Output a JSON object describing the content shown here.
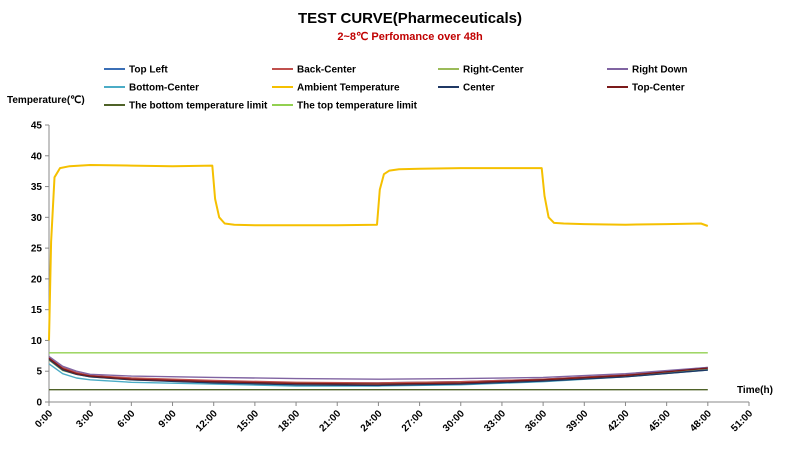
{
  "chart_data": {
    "type": "line",
    "title": "TEST CURVE(Pharmeceuticals)",
    "subtitle": "2~8℃ Perfomance over 48h",
    "ylabel": "Temperature(℃)",
    "xlabel": "Time(h)",
    "ylim": [
      0,
      45
    ],
    "xlim": [
      0,
      51
    ],
    "y_ticks": [
      "0",
      "5",
      "10",
      "15",
      "20",
      "25",
      "30",
      "35",
      "40",
      "45"
    ],
    "x_ticks": [
      "0:00",
      "3:00",
      "6:00",
      "9:00",
      "12:00",
      "15:00",
      "18:00",
      "21:00",
      "24:00",
      "27:00",
      "30:00",
      "33:00",
      "36:00",
      "39:00",
      "42:00",
      "45:00",
      "48:00",
      "51:00"
    ],
    "grid": false,
    "legend_position": "top",
    "series": [
      {
        "name": "Top Left",
        "color": "#3b6fb6",
        "x": [
          0,
          1,
          2,
          3,
          6,
          12,
          18,
          24,
          30,
          36,
          42,
          48
        ],
        "y": [
          7.0,
          5.3,
          4.6,
          4.2,
          3.8,
          3.4,
          3.1,
          3.1,
          3.3,
          3.7,
          4.4,
          5.6
        ]
      },
      {
        "name": "Back-Center",
        "color": "#c0504d",
        "x": [
          0,
          1,
          2,
          3,
          6,
          12,
          18,
          24,
          30,
          36,
          42,
          48
        ],
        "y": [
          7.3,
          5.6,
          4.8,
          4.3,
          3.9,
          3.5,
          3.2,
          3.1,
          3.3,
          3.7,
          4.4,
          5.4
        ]
      },
      {
        "name": "Right-Center",
        "color": "#9bbb59",
        "x": [
          0,
          1,
          2,
          3,
          6,
          12,
          18,
          24,
          30,
          36,
          42,
          48
        ],
        "y": [
          6.8,
          5.1,
          4.5,
          4.1,
          3.6,
          3.2,
          3.0,
          2.9,
          3.1,
          3.5,
          4.2,
          5.3
        ]
      },
      {
        "name": "Right Down",
        "color": "#8064a2",
        "x": [
          0,
          1,
          2,
          3,
          6,
          12,
          18,
          24,
          30,
          36,
          42,
          48
        ],
        "y": [
          7.4,
          5.8,
          5.0,
          4.5,
          4.2,
          4.0,
          3.8,
          3.7,
          3.8,
          4.0,
          4.6,
          5.6
        ]
      },
      {
        "name": "Bottom-Center",
        "color": "#4bacc6",
        "x": [
          0,
          1,
          2,
          3,
          6,
          12,
          18,
          24,
          30,
          36,
          42,
          48
        ],
        "y": [
          6.2,
          4.6,
          3.9,
          3.6,
          3.2,
          2.9,
          2.6,
          2.6,
          2.8,
          3.3,
          4.1,
          5.2
        ]
      },
      {
        "name": "Ambient Temperature",
        "color": "#f5c000",
        "x": [
          0,
          0.15,
          0.4,
          0.8,
          1.5,
          3,
          6,
          9,
          11.9,
          12.1,
          12.4,
          12.8,
          13.5,
          15,
          18,
          21,
          23.9,
          24.1,
          24.4,
          24.8,
          25.5,
          27,
          30,
          33,
          35.9,
          36.1,
          36.4,
          36.8,
          37.5,
          39,
          42,
          45,
          47.5,
          48
        ],
        "y": [
          10,
          26,
          36.5,
          38.0,
          38.3,
          38.5,
          38.4,
          38.3,
          38.4,
          33.0,
          30.0,
          29.0,
          28.8,
          28.7,
          28.7,
          28.7,
          28.8,
          34.5,
          37.0,
          37.6,
          37.8,
          37.9,
          38.0,
          38.0,
          38.0,
          33.5,
          30.0,
          29.1,
          29.0,
          28.9,
          28.8,
          28.9,
          29.0,
          28.6
        ]
      },
      {
        "name": "Center",
        "color": "#1f3864",
        "x": [
          0,
          1,
          2,
          3,
          6,
          12,
          18,
          24,
          30,
          36,
          42,
          48
        ],
        "y": [
          6.9,
          5.2,
          4.5,
          4.1,
          3.6,
          3.1,
          2.8,
          2.7,
          2.9,
          3.4,
          4.1,
          5.2
        ]
      },
      {
        "name": "Top-Center",
        "color": "#7b1a1a",
        "x": [
          0,
          1,
          2,
          3,
          6,
          12,
          18,
          24,
          30,
          36,
          42,
          48
        ],
        "y": [
          7.1,
          5.4,
          4.6,
          4.2,
          3.7,
          3.3,
          3.0,
          2.9,
          3.1,
          3.6,
          4.3,
          5.5
        ]
      },
      {
        "name": "The bottom temperature limit",
        "color": "#4f6228",
        "x": [
          0,
          48
        ],
        "y": [
          2,
          2
        ]
      },
      {
        "name": "The top temperature limit",
        "color": "#92d050",
        "x": [
          0,
          48
        ],
        "y": [
          8,
          8
        ]
      }
    ]
  }
}
